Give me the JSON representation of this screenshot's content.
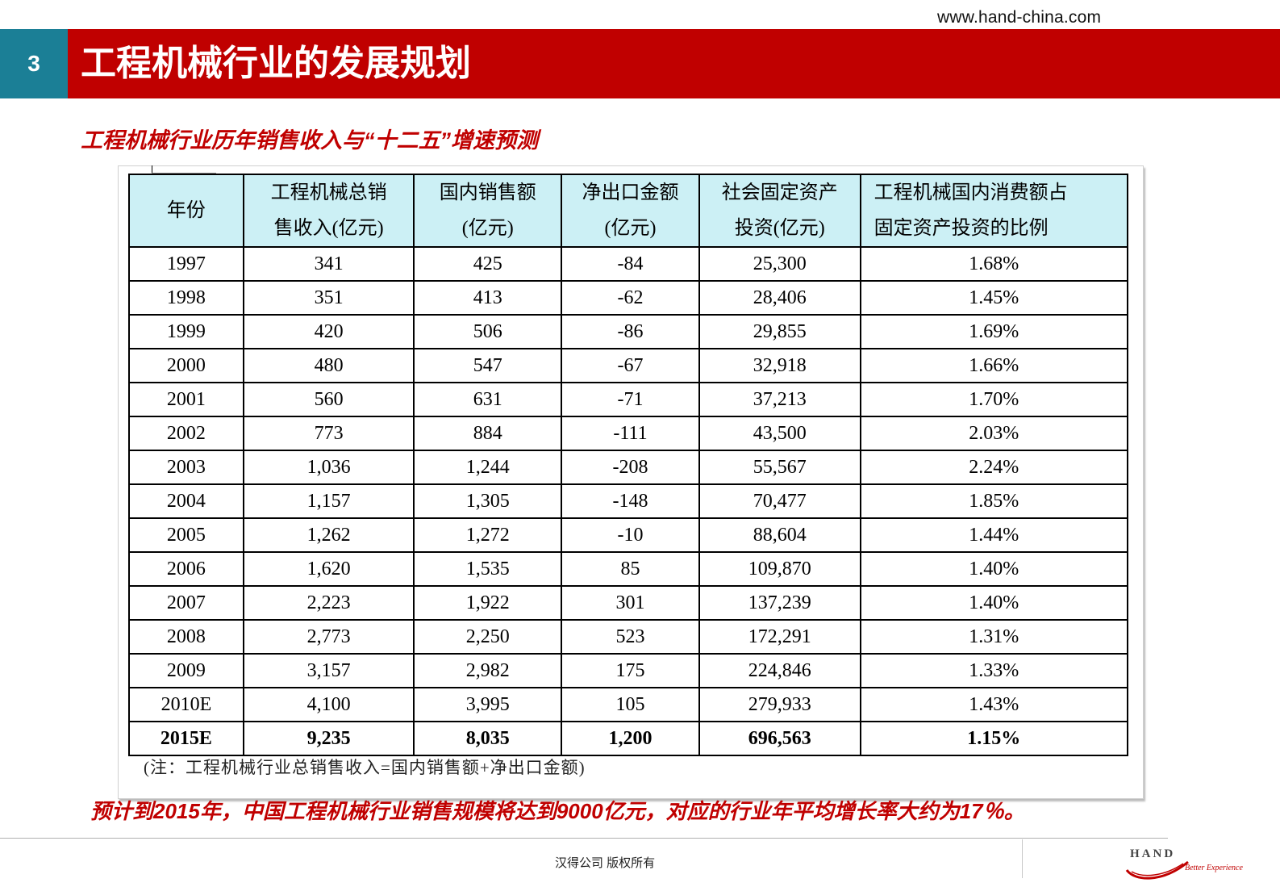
{
  "header": {
    "site_url": "www.hand-china.com",
    "slide_number": "3",
    "title": "工程机械行业的发展规划"
  },
  "subtitle": "工程机械行业历年销售收入与“十二五”增速预测",
  "table": {
    "headers": [
      [
        "年份"
      ],
      [
        "工程机械总销",
        "售收入(亿元)"
      ],
      [
        "国内销售额",
        "(亿元)"
      ],
      [
        "净出口金额",
        "(亿元)"
      ],
      [
        "社会固定资产",
        "投资(亿元)"
      ],
      [
        "工程机械国内消费额占",
        "固定资产投资的比例"
      ]
    ],
    "rows": [
      [
        "1997",
        "341",
        "425",
        "-84",
        "25,300",
        "1.68%"
      ],
      [
        "1998",
        "351",
        "413",
        "-62",
        "28,406",
        "1.45%"
      ],
      [
        "1999",
        "420",
        "506",
        "-86",
        "29,855",
        "1.69%"
      ],
      [
        "2000",
        "480",
        "547",
        "-67",
        "32,918",
        "1.66%"
      ],
      [
        "2001",
        "560",
        "631",
        "-71",
        "37,213",
        "1.70%"
      ],
      [
        "2002",
        "773",
        "884",
        "-111",
        "43,500",
        "2.03%"
      ],
      [
        "2003",
        "1,036",
        "1,244",
        "-208",
        "55,567",
        "2.24%"
      ],
      [
        "2004",
        "1,157",
        "1,305",
        "-148",
        "70,477",
        "1.85%"
      ],
      [
        "2005",
        "1,262",
        "1,272",
        "-10",
        "88,604",
        "1.44%"
      ],
      [
        "2006",
        "1,620",
        "1,535",
        "85",
        "109,870",
        "1.40%"
      ],
      [
        "2007",
        "2,223",
        "1,922",
        "301",
        "137,239",
        "1.40%"
      ],
      [
        "2008",
        "2,773",
        "2,250",
        "523",
        "172,291",
        "1.31%"
      ],
      [
        "2009",
        "3,157",
        "2,982",
        "175",
        "224,846",
        "1.33%"
      ],
      [
        "2010E",
        "4,100",
        "3,995",
        "105",
        "279,933",
        "1.43%"
      ],
      [
        "2015E",
        "9,235",
        "8,035",
        "1,200",
        "696,563",
        "1.15%"
      ]
    ],
    "bold_row_index": 14,
    "note": "(注：工程机械行业总销售收入=国内销售额+净出口金额)"
  },
  "conclusion": "预计到2015年，中国工程机械行业销售规模将达到9000亿元，对应的行业年平均增长率大约为17％。",
  "footer": {
    "copyright": "汉得公司   版权所有",
    "logo_text": "HAND",
    "logo_tagline": "Better Experience"
  },
  "colors": {
    "title_bar": "#c00000",
    "slide_number_bg": "#1b7f96",
    "header_fill": "#ccf0f5",
    "accent_text": "#c00000"
  }
}
